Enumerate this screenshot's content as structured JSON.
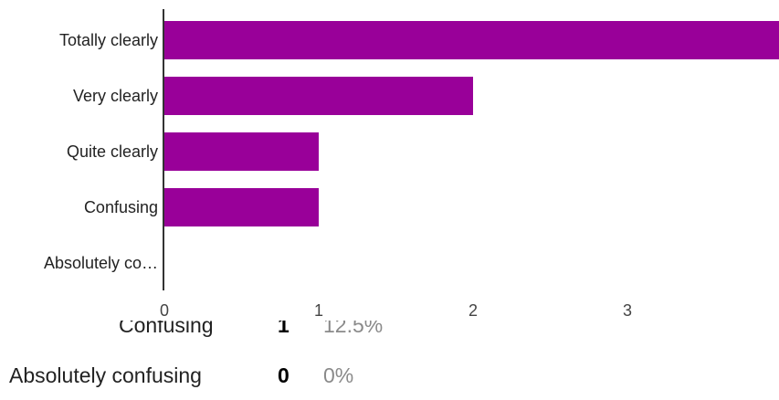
{
  "chart_data": {
    "type": "bar",
    "orientation": "horizontal",
    "categories": [
      "Totally clearly",
      "Very clearly",
      "Quite clearly",
      "Confusing",
      "Absolutely co…"
    ],
    "values": [
      4,
      2,
      1,
      1,
      0
    ],
    "xlim": [
      0,
      4
    ],
    "x_ticks": [
      "0",
      "1",
      "2",
      "3"
    ],
    "bar_color": "#990099",
    "axis_color": "#333333"
  },
  "summary": [
    {
      "label": "Confusing",
      "count": "1",
      "percent": "12.5%"
    },
    {
      "label": "Absolutely confusing",
      "count": "0",
      "percent": "0%"
    }
  ]
}
